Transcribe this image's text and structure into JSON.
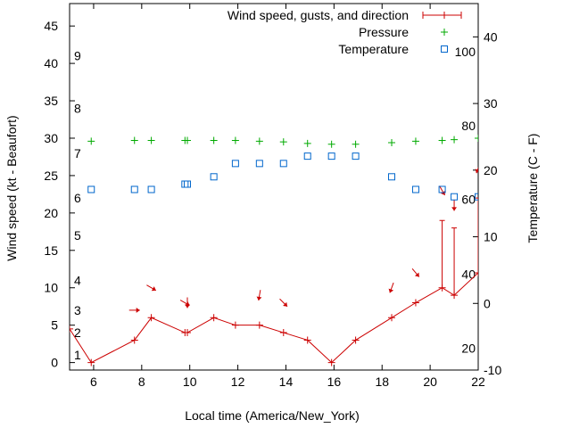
{
  "chart_data": {
    "type": "line",
    "x_axis": {
      "label": "Local time (America/New_York)",
      "min": 5,
      "max": 22,
      "ticks": [
        6,
        8,
        10,
        12,
        14,
        16,
        18,
        20,
        22
      ]
    },
    "y_left": {
      "label": "Wind speed (kt - Beaufort)",
      "min": -1,
      "max": 48,
      "ticks": [
        0,
        5,
        10,
        15,
        20,
        25,
        30,
        35,
        40,
        45
      ],
      "beaufort_labels": [
        {
          "text": "1",
          "value": 1
        },
        {
          "text": "2",
          "value": 4
        },
        {
          "text": "3",
          "value": 7
        },
        {
          "text": "4",
          "value": 11
        },
        {
          "text": "5",
          "value": 17
        },
        {
          "text": "6",
          "value": 22
        },
        {
          "text": "7",
          "value": 28
        },
        {
          "text": "8",
          "value": 34
        },
        {
          "text": "9",
          "value": 41
        }
      ]
    },
    "y_right": {
      "label": "Temperature (C - F)",
      "min": -10,
      "max": 45,
      "ticks": [
        -10,
        0,
        10,
        20,
        30,
        40
      ],
      "fahrenheit_labels": [
        {
          "text": "20",
          "value": -6.7
        },
        {
          "text": "40",
          "value": 4.4
        },
        {
          "text": "60",
          "value": 15.6
        },
        {
          "text": "80",
          "value": 26.7
        },
        {
          "text": "100",
          "value": 37.8
        }
      ]
    },
    "legend_position": "top-right",
    "series": [
      {
        "name": "Wind speed, gusts, and direction",
        "color": "#cc0000",
        "points": [
          {
            "x": 5,
            "y": 4.5
          },
          {
            "x": 5.9,
            "y": 0
          },
          {
            "x": 7.7,
            "y": 3
          },
          {
            "x": 8.4,
            "y": 6
          },
          {
            "x": 9.8,
            "y": 4
          },
          {
            "x": 9.9,
            "y": 4
          },
          {
            "x": 11,
            "y": 6
          },
          {
            "x": 11.9,
            "y": 5
          },
          {
            "x": 12.9,
            "y": 5
          },
          {
            "x": 13.9,
            "y": 4
          },
          {
            "x": 14.9,
            "y": 3
          },
          {
            "x": 15.9,
            "y": 0
          },
          {
            "x": 16.9,
            "y": 3
          },
          {
            "x": 18.4,
            "y": 6
          },
          {
            "x": 19.4,
            "y": 8
          },
          {
            "x": 20.5,
            "y": 10
          },
          {
            "x": 21,
            "y": 9
          },
          {
            "x": 22,
            "y": 12
          }
        ],
        "gusts": [
          {
            "x": 20.5,
            "low": 10,
            "high": 19
          },
          {
            "x": 21,
            "low": 9,
            "high": 18
          },
          {
            "x": 22,
            "low": 12,
            "high": 22
          }
        ],
        "directions": [
          {
            "x": 7.7,
            "y": 7,
            "deg": 270
          },
          {
            "x": 8.4,
            "y": 10,
            "deg": 300
          },
          {
            "x": 9.8,
            "y": 8,
            "deg": 300
          },
          {
            "x": 9.9,
            "y": 8,
            "deg": 0
          },
          {
            "x": 12.9,
            "y": 9,
            "deg": 10
          },
          {
            "x": 13.9,
            "y": 8,
            "deg": 315
          },
          {
            "x": 18.4,
            "y": 10,
            "deg": 20
          },
          {
            "x": 19.4,
            "y": 12,
            "deg": 320
          },
          {
            "x": 20.5,
            "y": 23,
            "deg": 330
          },
          {
            "x": 21,
            "y": 21,
            "deg": 0
          },
          {
            "x": 22,
            "y": 26,
            "deg": 20
          }
        ]
      },
      {
        "name": "Pressure",
        "color": "#00aa00",
        "marker": "plus",
        "axis": "left",
        "points": [
          {
            "x": 5.9,
            "y": 29.6
          },
          {
            "x": 7.7,
            "y": 29.7
          },
          {
            "x": 8.4,
            "y": 29.7
          },
          {
            "x": 9.8,
            "y": 29.7
          },
          {
            "x": 9.9,
            "y": 29.7
          },
          {
            "x": 11,
            "y": 29.7
          },
          {
            "x": 11.9,
            "y": 29.7
          },
          {
            "x": 12.9,
            "y": 29.6
          },
          {
            "x": 13.9,
            "y": 29.5
          },
          {
            "x": 14.9,
            "y": 29.3
          },
          {
            "x": 15.9,
            "y": 29.2
          },
          {
            "x": 16.9,
            "y": 29.2
          },
          {
            "x": 18.4,
            "y": 29.4
          },
          {
            "x": 19.4,
            "y": 29.6
          },
          {
            "x": 20.5,
            "y": 29.7
          },
          {
            "x": 21,
            "y": 29.8
          },
          {
            "x": 22,
            "y": 30
          }
        ]
      },
      {
        "name": "Temperature",
        "color": "#0066cc",
        "marker": "square",
        "axis": "right",
        "points": [
          {
            "x": 5.9,
            "y": 17.1
          },
          {
            "x": 7.7,
            "y": 17.1
          },
          {
            "x": 8.4,
            "y": 17.1
          },
          {
            "x": 9.8,
            "y": 17.9
          },
          {
            "x": 9.9,
            "y": 17.9
          },
          {
            "x": 11,
            "y": 19
          },
          {
            "x": 11.9,
            "y": 21
          },
          {
            "x": 12.9,
            "y": 21
          },
          {
            "x": 13.9,
            "y": 21
          },
          {
            "x": 14.9,
            "y": 22.1
          },
          {
            "x": 15.9,
            "y": 22.1
          },
          {
            "x": 16.9,
            "y": 22.1
          },
          {
            "x": 18.4,
            "y": 19
          },
          {
            "x": 19.4,
            "y": 17.1
          },
          {
            "x": 20.5,
            "y": 17.1
          },
          {
            "x": 21,
            "y": 16
          },
          {
            "x": 22,
            "y": 16
          }
        ]
      }
    ]
  }
}
